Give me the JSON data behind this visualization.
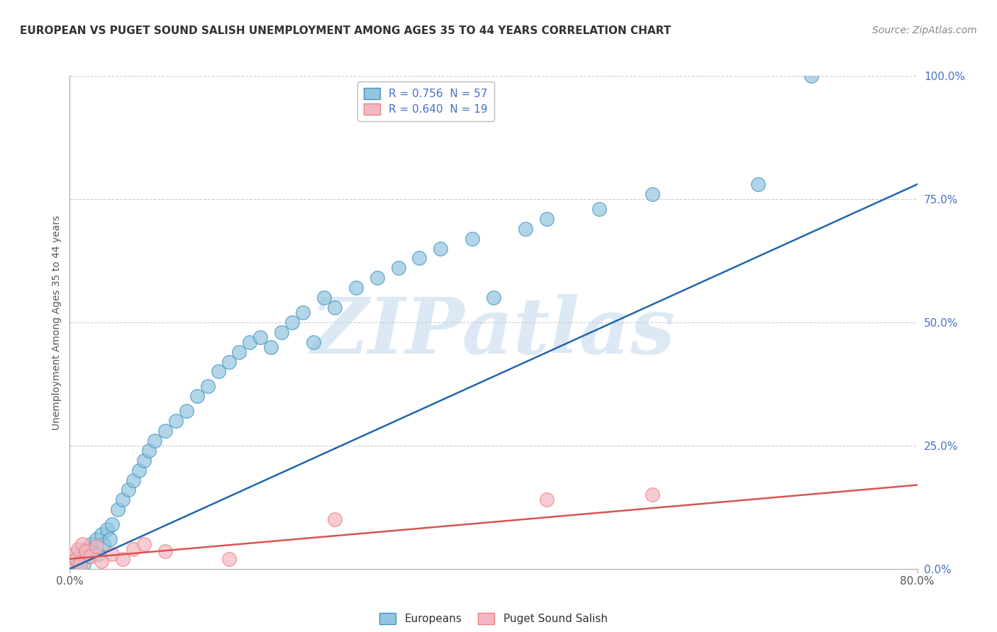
{
  "title": "EUROPEAN VS PUGET SOUND SALISH UNEMPLOYMENT AMONG AGES 35 TO 44 YEARS CORRELATION CHART",
  "source": "Source: ZipAtlas.com",
  "ylabel": "Unemployment Among Ages 35 to 44 years",
  "ytick_labels": [
    "0.0%",
    "25.0%",
    "50.0%",
    "75.0%",
    "100.0%"
  ],
  "ytick_values": [
    0,
    25,
    50,
    75,
    100
  ],
  "xtick_labels": [
    "0.0%",
    "80.0%"
  ],
  "xtick_values": [
    0,
    80
  ],
  "xlim": [
    0,
    80
  ],
  "ylim": [
    0,
    100
  ],
  "blue_color": "#92c5de",
  "pink_color": "#f4b6c2",
  "blue_edge_color": "#4393c3",
  "pink_edge_color": "#f08080",
  "blue_line_color": "#2166ac",
  "pink_line_color": "#d9534f",
  "grid_color": "#cccccc",
  "watermark_text": "ZIPatlas",
  "watermark_color": "#dce9f5",
  "blue_label": "Europeans",
  "pink_label": "Puget Sound Salish",
  "blue_R": "0.756",
  "blue_N": "57",
  "pink_R": "0.640",
  "pink_N": "19",
  "title_fontsize": 11,
  "tick_fontsize": 11,
  "legend_fontsize": 11,
  "blue_scatter_x": [
    0.3,
    0.5,
    0.6,
    0.8,
    1.0,
    1.1,
    1.3,
    1.5,
    1.7,
    1.8,
    2.0,
    2.2,
    2.5,
    2.7,
    3.0,
    3.2,
    3.5,
    3.8,
    4.0,
    4.5,
    5.0,
    5.5,
    6.0,
    6.5,
    7.0,
    7.5,
    8.0,
    9.0,
    10.0,
    11.0,
    12.0,
    13.0,
    14.0,
    15.0,
    16.0,
    17.0,
    18.0,
    19.0,
    20.0,
    21.0,
    22.0,
    23.0,
    24.0,
    25.0,
    27.0,
    29.0,
    31.0,
    33.0,
    35.0,
    38.0,
    40.0,
    43.0,
    45.0,
    50.0,
    55.0,
    65.0,
    70.0
  ],
  "blue_scatter_y": [
    1.0,
    0.5,
    2.0,
    1.5,
    3.0,
    2.0,
    1.0,
    4.0,
    3.0,
    2.5,
    5.0,
    4.0,
    6.0,
    3.0,
    7.0,
    5.0,
    8.0,
    6.0,
    9.0,
    12.0,
    14.0,
    16.0,
    18.0,
    20.0,
    22.0,
    24.0,
    26.0,
    28.0,
    30.0,
    32.0,
    35.0,
    37.0,
    40.0,
    42.0,
    44.0,
    46.0,
    47.0,
    45.0,
    48.0,
    50.0,
    52.0,
    46.0,
    55.0,
    53.0,
    57.0,
    59.0,
    61.0,
    63.0,
    65.0,
    67.0,
    55.0,
    69.0,
    71.0,
    73.0,
    76.0,
    78.0,
    100.0
  ],
  "pink_scatter_x": [
    0.2,
    0.4,
    0.6,
    0.8,
    1.0,
    1.2,
    1.5,
    2.0,
    2.5,
    3.0,
    4.0,
    5.0,
    6.0,
    7.0,
    9.0,
    15.0,
    25.0,
    45.0,
    55.0
  ],
  "pink_scatter_y": [
    1.5,
    3.0,
    2.0,
    4.0,
    1.0,
    5.0,
    3.5,
    2.5,
    4.5,
    1.5,
    3.0,
    2.0,
    4.0,
    5.0,
    3.5,
    2.0,
    10.0,
    14.0,
    15.0
  ],
  "blue_line_x0": 0,
  "blue_line_x1": 80,
  "blue_line_y0": 0,
  "blue_line_y1": 78,
  "pink_line_x0": 0,
  "pink_line_x1": 80,
  "pink_line_y0": 2,
  "pink_line_y1": 17
}
